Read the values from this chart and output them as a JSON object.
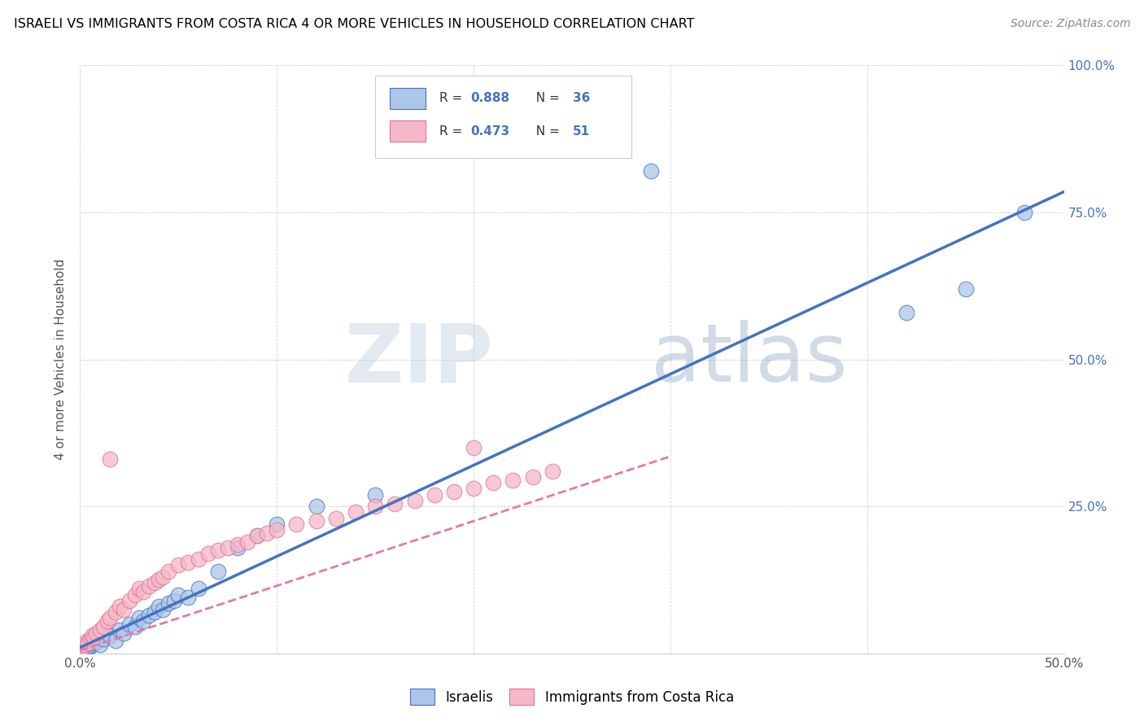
{
  "title": "ISRAELI VS IMMIGRANTS FROM COSTA RICA 4 OR MORE VEHICLES IN HOUSEHOLD CORRELATION CHART",
  "source": "Source: ZipAtlas.com",
  "ylabel": "4 or more Vehicles in Household",
  "xlim": [
    0,
    0.5
  ],
  "ylim": [
    0,
    1.0
  ],
  "xtick_positions": [
    0.0,
    0.1,
    0.2,
    0.3,
    0.4,
    0.5
  ],
  "ytick_positions": [
    0.0,
    0.25,
    0.5,
    0.75,
    1.0
  ],
  "xticklabels": [
    "0.0%",
    "",
    "",
    "",
    "",
    "50.0%"
  ],
  "yticklabels_right": [
    "",
    "25.0%",
    "50.0%",
    "75.0%",
    "100.0%"
  ],
  "israeli_color": "#adc6e8",
  "israeli_edge_color": "#4472c4",
  "costa_color": "#f5b8c8",
  "costa_edge_color": "#e07090",
  "israeli_line_color": "#4472c4",
  "costa_line_color": "#e878a0",
  "watermark_text": "ZIPatlas",
  "watermark_color": "#c8d8e8",
  "legend_R1": "R = 0.888",
  "legend_N1": "N = 36",
  "legend_R2": "R = 0.473",
  "legend_N2": "N = 51",
  "israeli_x": [
    0.001,
    0.002,
    0.003,
    0.005,
    0.006,
    0.007,
    0.008,
    0.01,
    0.012,
    0.015,
    0.018,
    0.02,
    0.022,
    0.025,
    0.028,
    0.03,
    0.032,
    0.035,
    0.038,
    0.04,
    0.042,
    0.045,
    0.048,
    0.05,
    0.055,
    0.06,
    0.07,
    0.08,
    0.09,
    0.1,
    0.12,
    0.15,
    0.29,
    0.42,
    0.45,
    0.48
  ],
  "israeli_y": [
    0.005,
    0.01,
    0.008,
    0.012,
    0.015,
    0.018,
    0.02,
    0.015,
    0.025,
    0.03,
    0.022,
    0.04,
    0.035,
    0.05,
    0.045,
    0.06,
    0.055,
    0.065,
    0.07,
    0.08,
    0.075,
    0.085,
    0.09,
    0.1,
    0.095,
    0.11,
    0.14,
    0.18,
    0.2,
    0.22,
    0.25,
    0.27,
    0.82,
    0.58,
    0.62,
    0.75
  ],
  "costa_x": [
    0.001,
    0.002,
    0.003,
    0.004,
    0.005,
    0.006,
    0.007,
    0.008,
    0.01,
    0.012,
    0.014,
    0.015,
    0.018,
    0.02,
    0.022,
    0.025,
    0.028,
    0.03,
    0.032,
    0.035,
    0.038,
    0.04,
    0.042,
    0.045,
    0.05,
    0.055,
    0.06,
    0.065,
    0.07,
    0.075,
    0.08,
    0.085,
    0.09,
    0.095,
    0.1,
    0.11,
    0.12,
    0.13,
    0.14,
    0.15,
    0.16,
    0.17,
    0.18,
    0.19,
    0.2,
    0.21,
    0.22,
    0.23,
    0.24,
    0.2,
    0.015
  ],
  "costa_y": [
    0.01,
    0.015,
    0.02,
    0.018,
    0.025,
    0.03,
    0.028,
    0.035,
    0.04,
    0.045,
    0.055,
    0.06,
    0.07,
    0.08,
    0.075,
    0.09,
    0.1,
    0.11,
    0.105,
    0.115,
    0.12,
    0.125,
    0.13,
    0.14,
    0.15,
    0.155,
    0.16,
    0.17,
    0.175,
    0.18,
    0.185,
    0.19,
    0.2,
    0.205,
    0.21,
    0.22,
    0.225,
    0.23,
    0.24,
    0.25,
    0.255,
    0.26,
    0.27,
    0.275,
    0.28,
    0.29,
    0.295,
    0.3,
    0.31,
    0.35,
    0.33
  ]
}
